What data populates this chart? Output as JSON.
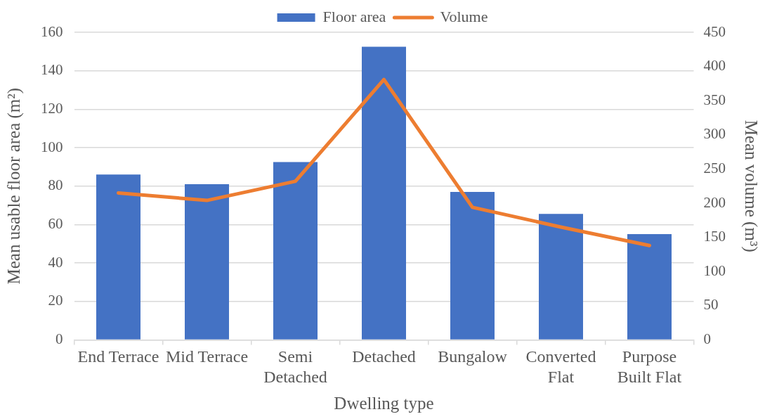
{
  "chart_data": {
    "type": "bar",
    "xlabel": "Dwelling type",
    "ylabel": "Mean usable floor area (m²)",
    "y2label": "Mean volume (m³)",
    "categories": [
      "End Terrace",
      "Mid Terrace",
      "Semi Detached",
      "Detached",
      "Bungalow",
      "Converted Flat",
      "Purpose Built Flat"
    ],
    "series": [
      {
        "name": "Floor area",
        "color": "#4472c4",
        "values": [
          86,
          81,
          92.5,
          152.5,
          77,
          65.5,
          55
        ]
      },
      {
        "name": "Volume",
        "type": "line",
        "color": "#ed7d31",
        "axis": "y2",
        "values": [
          215,
          204,
          232,
          381,
          194,
          165,
          138
        ]
      }
    ],
    "ylim": [
      0,
      160
    ],
    "yticks": [
      0,
      20,
      40,
      60,
      80,
      100,
      120,
      140,
      160
    ],
    "y2lim": [
      0,
      450
    ],
    "y2ticks": [
      0,
      50,
      100,
      150,
      200,
      250,
      300,
      350,
      400,
      450
    ],
    "grid": "y",
    "legend": "top",
    "marker": "none"
  }
}
